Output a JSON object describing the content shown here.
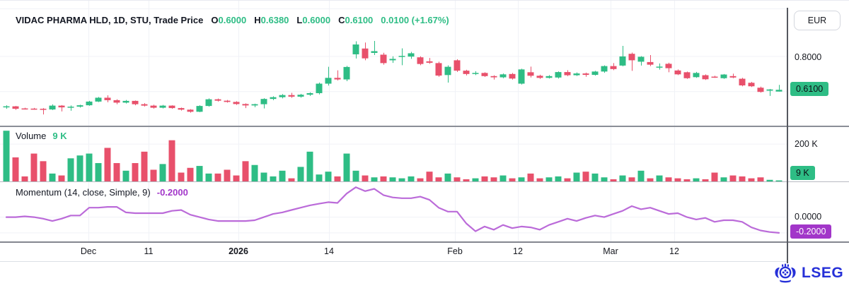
{
  "header": {
    "symbol_title": "VIDAC PHARMA HLD, 1D, STU, Trade Price",
    "o_label": "O",
    "o_value": "0.6000",
    "h_label": "H",
    "h_value": "0.6380",
    "l_label": "L",
    "l_value": "0.6000",
    "c_label": "C",
    "c_value": "0.6100",
    "change_value": "0.0100 (+1.67%)"
  },
  "volume_header": {
    "label": "Volume",
    "value": "9 K"
  },
  "momentum_header": {
    "label": "Momentum (14, close, Simple, 9)",
    "value": "-0.2000"
  },
  "right_axis": {
    "currency_button": "EUR",
    "price_tick": "0.8000",
    "last_price_badge": "0.6100",
    "volume_tick": "200 K",
    "last_volume_badge": "9 K",
    "momentum_tick": "0.0000",
    "last_momentum_badge": "-0.2000"
  },
  "x_axis": {
    "labels": [
      {
        "text": "Dec",
        "x": 125,
        "bold": false
      },
      {
        "text": "11",
        "x": 210,
        "bold": false
      },
      {
        "text": "2026",
        "x": 337,
        "bold": true
      },
      {
        "text": "14",
        "x": 465,
        "bold": false
      },
      {
        "text": "Feb",
        "x": 643,
        "bold": false
      },
      {
        "text": "12",
        "x": 732,
        "bold": false
      },
      {
        "text": "Mar",
        "x": 863,
        "bold": false
      },
      {
        "text": "12",
        "x": 953,
        "bold": false
      }
    ]
  },
  "logo": {
    "text": "LSEG"
  },
  "colors": {
    "up": "#2EBD85",
    "down": "#E8506B",
    "momentum_line": "#BB6BD9",
    "momentum_badge": "#A236C9",
    "grid": "#f0f2f7",
    "logo_blue": "#2630D8",
    "ohlc_green": "#2EBD85"
  },
  "chart_data": [
    {
      "type": "candlestick",
      "title": "VIDAC PHARMA HLD, 1D, STU, Trade Price",
      "interval": "1D",
      "exchange": "STU",
      "currency": "EUR",
      "last": {
        "open": 0.6,
        "high": 0.638,
        "low": 0.6,
        "close": 0.61,
        "change": 0.01,
        "change_pct": "+1.67%"
      },
      "ylim": [
        0.41,
        1.077
      ],
      "y_gridlines": [
        0.8,
        0.6
      ],
      "y_tick": {
        "value": 0.8,
        "label": "0.8000"
      },
      "candles": [
        [
          0.51,
          0.522,
          0.502,
          0.516
        ],
        [
          0.516,
          0.518,
          0.496,
          0.502
        ],
        [
          0.504,
          0.508,
          0.498,
          0.5
        ],
        [
          0.503,
          0.507,
          0.497,
          0.499
        ],
        [
          0.502,
          0.506,
          0.47,
          0.498
        ],
        [
          0.498,
          0.527,
          0.495,
          0.52
        ],
        [
          0.52,
          0.523,
          0.487,
          0.51
        ],
        [
          0.508,
          0.521,
          0.491,
          0.514
        ],
        [
          0.514,
          0.525,
          0.509,
          0.522
        ],
        [
          0.522,
          0.547,
          0.519,
          0.543
        ],
        [
          0.543,
          0.569,
          0.54,
          0.565
        ],
        [
          0.565,
          0.579,
          0.539,
          0.551
        ],
        [
          0.551,
          0.556,
          0.528,
          0.537
        ],
        [
          0.537,
          0.552,
          0.532,
          0.547
        ],
        [
          0.547,
          0.549,
          0.522,
          0.528
        ],
        [
          0.528,
          0.534,
          0.515,
          0.52
        ],
        [
          0.52,
          0.525,
          0.503,
          0.508
        ],
        [
          0.508,
          0.524,
          0.504,
          0.52
        ],
        [
          0.52,
          0.522,
          0.502,
          0.506
        ],
        [
          0.506,
          0.509,
          0.492,
          0.497
        ],
        [
          0.497,
          0.5,
          0.48,
          0.485
        ],
        [
          0.485,
          0.522,
          0.483,
          0.518
        ],
        [
          0.518,
          0.561,
          0.514,
          0.556
        ],
        [
          0.556,
          0.56,
          0.543,
          0.548
        ],
        [
          0.548,
          0.552,
          0.537,
          0.541
        ],
        [
          0.541,
          0.545,
          0.524,
          0.529
        ],
        [
          0.529,
          0.533,
          0.506,
          0.521
        ],
        [
          0.521,
          0.531,
          0.511,
          0.528
        ],
        [
          0.528,
          0.562,
          0.504,
          0.558
        ],
        [
          0.558,
          0.573,
          0.551,
          0.568
        ],
        [
          0.568,
          0.586,
          0.561,
          0.58
        ],
        [
          0.58,
          0.593,
          0.564,
          0.571
        ],
        [
          0.571,
          0.587,
          0.565,
          0.582
        ],
        [
          0.582,
          0.596,
          0.575,
          0.591
        ],
        [
          0.591,
          0.651,
          0.584,
          0.645
        ],
        [
          0.645,
          0.741,
          0.634,
          0.678
        ],
        [
          0.678,
          0.721,
          0.663,
          0.669
        ],
        [
          0.669,
          0.746,
          0.659,
          0.74
        ],
        [
          0.812,
          0.886,
          0.788,
          0.868
        ],
        [
          0.845,
          0.879,
          0.778,
          0.789
        ],
        [
          0.82,
          0.888,
          0.808,
          0.83
        ],
        [
          0.81,
          0.821,
          0.753,
          0.762
        ],
        [
          0.778,
          0.801,
          0.763,
          0.786
        ],
        [
          0.798,
          0.846,
          0.75,
          0.803
        ],
        [
          0.799,
          0.826,
          0.786,
          0.818
        ],
        [
          0.795,
          0.801,
          0.75,
          0.757
        ],
        [
          0.772,
          0.791,
          0.758,
          0.764
        ],
        [
          0.762,
          0.77,
          0.684,
          0.691
        ],
        [
          0.694,
          0.749,
          0.651,
          0.741
        ],
        [
          0.778,
          0.784,
          0.712,
          0.719
        ],
        [
          0.719,
          0.724,
          0.692,
          0.7
        ],
        [
          0.7,
          0.716,
          0.694,
          0.706
        ],
        [
          0.706,
          0.71,
          0.683,
          0.688
        ],
        [
          0.688,
          0.693,
          0.668,
          0.681
        ],
        [
          0.681,
          0.703,
          0.676,
          0.698
        ],
        [
          0.7,
          0.706,
          0.668,
          0.674
        ],
        [
          0.645,
          0.73,
          0.64,
          0.726
        ],
        [
          0.71,
          0.742,
          0.68,
          0.69
        ],
        [
          0.69,
          0.696,
          0.672,
          0.678
        ],
        [
          0.678,
          0.694,
          0.674,
          0.688
        ],
        [
          0.68,
          0.715,
          0.674,
          0.711
        ],
        [
          0.711,
          0.722,
          0.688,
          0.693
        ],
        [
          0.693,
          0.709,
          0.689,
          0.703
        ],
        [
          0.703,
          0.708,
          0.684,
          0.695
        ],
        [
          0.695,
          0.718,
          0.691,
          0.714
        ],
        [
          0.714,
          0.749,
          0.707,
          0.745
        ],
        [
          0.745,
          0.762,
          0.722,
          0.728
        ],
        [
          0.748,
          0.86,
          0.744,
          0.8
        ],
        [
          0.815,
          0.822,
          0.718,
          0.778
        ],
        [
          0.77,
          0.802,
          0.748,
          0.798
        ],
        [
          0.768,
          0.808,
          0.745,
          0.753
        ],
        [
          0.74,
          0.76,
          0.725,
          0.742
        ],
        [
          0.758,
          0.764,
          0.71,
          0.733
        ],
        [
          0.72,
          0.726,
          0.694,
          0.698
        ],
        [
          0.71,
          0.714,
          0.672,
          0.676
        ],
        [
          0.682,
          0.712,
          0.678,
          0.706
        ],
        [
          0.693,
          0.698,
          0.666,
          0.67
        ],
        [
          0.685,
          0.69,
          0.678,
          0.682
        ],
        [
          0.676,
          0.7,
          0.672,
          0.697
        ],
        [
          0.688,
          0.702,
          0.676,
          0.68
        ],
        [
          0.673,
          0.678,
          0.63,
          0.635
        ],
        [
          0.65,
          0.655,
          0.626,
          0.63
        ],
        [
          0.622,
          0.628,
          0.594,
          0.598
        ],
        [
          0.605,
          0.615,
          0.575,
          0.612
        ],
        [
          0.6,
          0.638,
          0.6,
          0.61
        ]
      ]
    },
    {
      "type": "bar",
      "title": "Volume",
      "unit": "K",
      "last_value": 9,
      "ylim": [
        0,
        293
      ],
      "y_gridlines": [
        200
      ],
      "y_tick": {
        "value": 200,
        "label": "200 K"
      },
      "values": [
        270,
        130,
        30,
        150,
        110,
        45,
        35,
        125,
        140,
        150,
        100,
        180,
        100,
        60,
        100,
        160,
        65,
        95,
        220,
        50,
        75,
        85,
        45,
        45,
        65,
        35,
        110,
        90,
        50,
        30,
        60,
        20,
        80,
        160,
        40,
        55,
        30,
        150,
        60,
        35,
        25,
        30,
        25,
        20,
        30,
        20,
        55,
        25,
        45,
        25,
        15,
        20,
        30,
        25,
        35,
        20,
        25,
        45,
        20,
        25,
        30,
        20,
        50,
        55,
        45,
        25,
        15,
        35,
        25,
        60,
        20,
        35,
        25,
        20,
        15,
        20,
        15,
        50,
        25,
        35,
        30,
        20,
        25,
        12,
        9
      ]
    },
    {
      "type": "line",
      "title": "Momentum (14, close, Simple, 9)",
      "params": {
        "length": 14,
        "source": "close",
        "smoothing": "Simple",
        "signal": 9
      },
      "last_value": -0.2,
      "ylim": [
        -0.309,
        0.445
      ],
      "y_gridlines": [
        0.0,
        -0.2
      ],
      "y_tick": {
        "value": 0.0,
        "label": "0.0000"
      },
      "values": [
        0.0,
        0.0,
        0.01,
        0.0,
        -0.02,
        -0.05,
        -0.02,
        0.02,
        0.02,
        0.12,
        0.12,
        0.13,
        0.13,
        0.06,
        0.05,
        0.05,
        0.05,
        0.05,
        0.08,
        0.09,
        0.03,
        0.0,
        -0.03,
        -0.05,
        -0.05,
        -0.05,
        -0.05,
        -0.04,
        0.0,
        0.04,
        0.06,
        0.09,
        0.12,
        0.15,
        0.17,
        0.19,
        0.18,
        0.3,
        0.38,
        0.33,
        0.36,
        0.28,
        0.25,
        0.24,
        0.24,
        0.26,
        0.22,
        0.12,
        0.07,
        0.07,
        -0.08,
        -0.18,
        -0.12,
        -0.16,
        -0.1,
        -0.14,
        -0.12,
        -0.13,
        -0.16,
        -0.1,
        -0.06,
        -0.02,
        -0.05,
        -0.01,
        0.02,
        0.0,
        0.04,
        0.08,
        0.14,
        0.1,
        0.12,
        0.08,
        0.04,
        0.05,
        0.0,
        -0.03,
        -0.01,
        -0.06,
        -0.04,
        -0.04,
        -0.06,
        -0.13,
        -0.17,
        -0.19,
        -0.2
      ]
    }
  ]
}
